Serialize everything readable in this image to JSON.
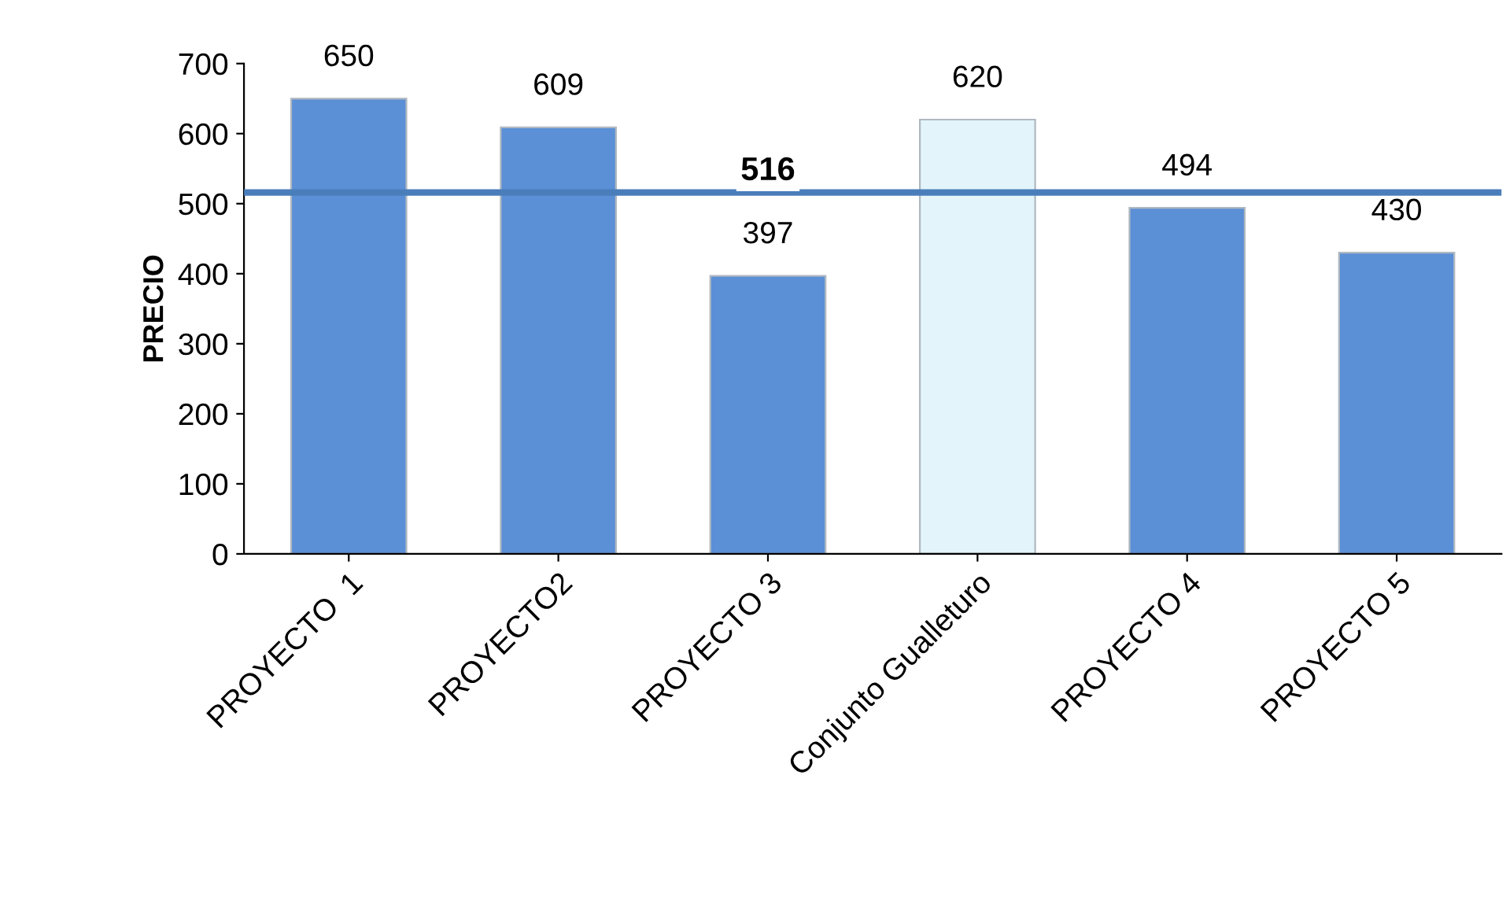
{
  "chart_data": {
    "type": "bar",
    "ylabel": "PRECIO",
    "categories": [
      "PROYECTO  1",
      "PROYECTO2",
      "PROYECTO 3",
      "Conjunto Gualleturo",
      "PROYECTO 4",
      "PROYECTO 5"
    ],
    "values": [
      650,
      609,
      397,
      620,
      494,
      430
    ],
    "colors": [
      "#5b8fd6",
      "#5b8fd6",
      "#5b8fd6",
      "#e3f5fa",
      "#5b8fd6",
      "#5b8fd6"
    ],
    "data_labels": true,
    "ylim": [
      0,
      700
    ],
    "yticks": [
      0,
      100,
      200,
      300,
      400,
      500,
      600,
      700
    ],
    "grid": false,
    "ref_lines": [
      {
        "axis": "y",
        "value": 516,
        "label": "516",
        "color": "#4a7ebb"
      }
    ]
  }
}
